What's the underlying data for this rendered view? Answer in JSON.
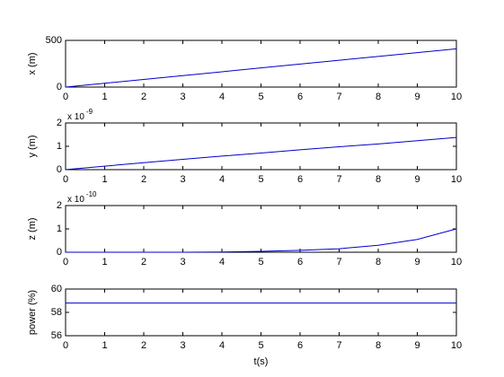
{
  "chart_data": [
    {
      "type": "line",
      "ylabel": "x (m)",
      "x": [
        0,
        1,
        2,
        3,
        4,
        5,
        6,
        7,
        8,
        9,
        10
      ],
      "series": [
        {
          "color": "#0000cc",
          "values": [
            0,
            41,
            82,
            123,
            164,
            205,
            246,
            287,
            328,
            369,
            410
          ]
        }
      ],
      "xlim": [
        0,
        10
      ],
      "ylim": [
        0,
        500
      ],
      "xticks": [
        0,
        1,
        2,
        3,
        4,
        5,
        6,
        7,
        8,
        9,
        10
      ],
      "yticks": [
        0,
        500
      ],
      "grid": false
    },
    {
      "type": "line",
      "ylabel": "y (m)",
      "axis_multiplier": {
        "base": "x 10",
        "exponent": "-9"
      },
      "x": [
        0,
        1,
        2,
        3,
        4,
        5,
        6,
        7,
        8,
        9,
        10
      ],
      "series": [
        {
          "color": "#0000cc",
          "values": [
            0,
            0.15,
            0.3,
            0.44,
            0.58,
            0.71,
            0.85,
            0.98,
            1.1,
            1.24,
            1.38
          ]
        }
      ],
      "xlim": [
        0,
        10
      ],
      "ylim": [
        0,
        2
      ],
      "xticks": [
        0,
        1,
        2,
        3,
        4,
        5,
        6,
        7,
        8,
        9,
        10
      ],
      "yticks": [
        0,
        1,
        2
      ],
      "grid": false
    },
    {
      "type": "line",
      "ylabel": "z (m)",
      "axis_multiplier": {
        "base": "x 10",
        "exponent": "-10"
      },
      "x": [
        0,
        1,
        2,
        3,
        4,
        5,
        6,
        7,
        8,
        9,
        10
      ],
      "series": [
        {
          "color": "#0000cc",
          "values": [
            0,
            0,
            0,
            0,
            0.01,
            0.04,
            0.08,
            0.15,
            0.3,
            0.55,
            1.0
          ]
        }
      ],
      "xlim": [
        0,
        10
      ],
      "ylim": [
        0,
        2
      ],
      "xticks": [
        0,
        1,
        2,
        3,
        4,
        5,
        6,
        7,
        8,
        9,
        10
      ],
      "yticks": [
        0,
        1,
        2
      ],
      "grid": false
    },
    {
      "type": "line",
      "ylabel": "power (%)",
      "xlabel": "t(s)",
      "x": [
        0,
        1,
        2,
        3,
        4,
        5,
        6,
        7,
        8,
        9,
        10
      ],
      "series": [
        {
          "color": "#0000cc",
          "values": [
            58.8,
            58.8,
            58.8,
            58.8,
            58.8,
            58.8,
            58.8,
            58.8,
            58.8,
            58.8,
            58.8
          ]
        }
      ],
      "xlim": [
        0,
        10
      ],
      "ylim": [
        56,
        60
      ],
      "xticks": [
        0,
        1,
        2,
        3,
        4,
        5,
        6,
        7,
        8,
        9,
        10
      ],
      "yticks": [
        56,
        58,
        60
      ],
      "grid": false
    }
  ]
}
